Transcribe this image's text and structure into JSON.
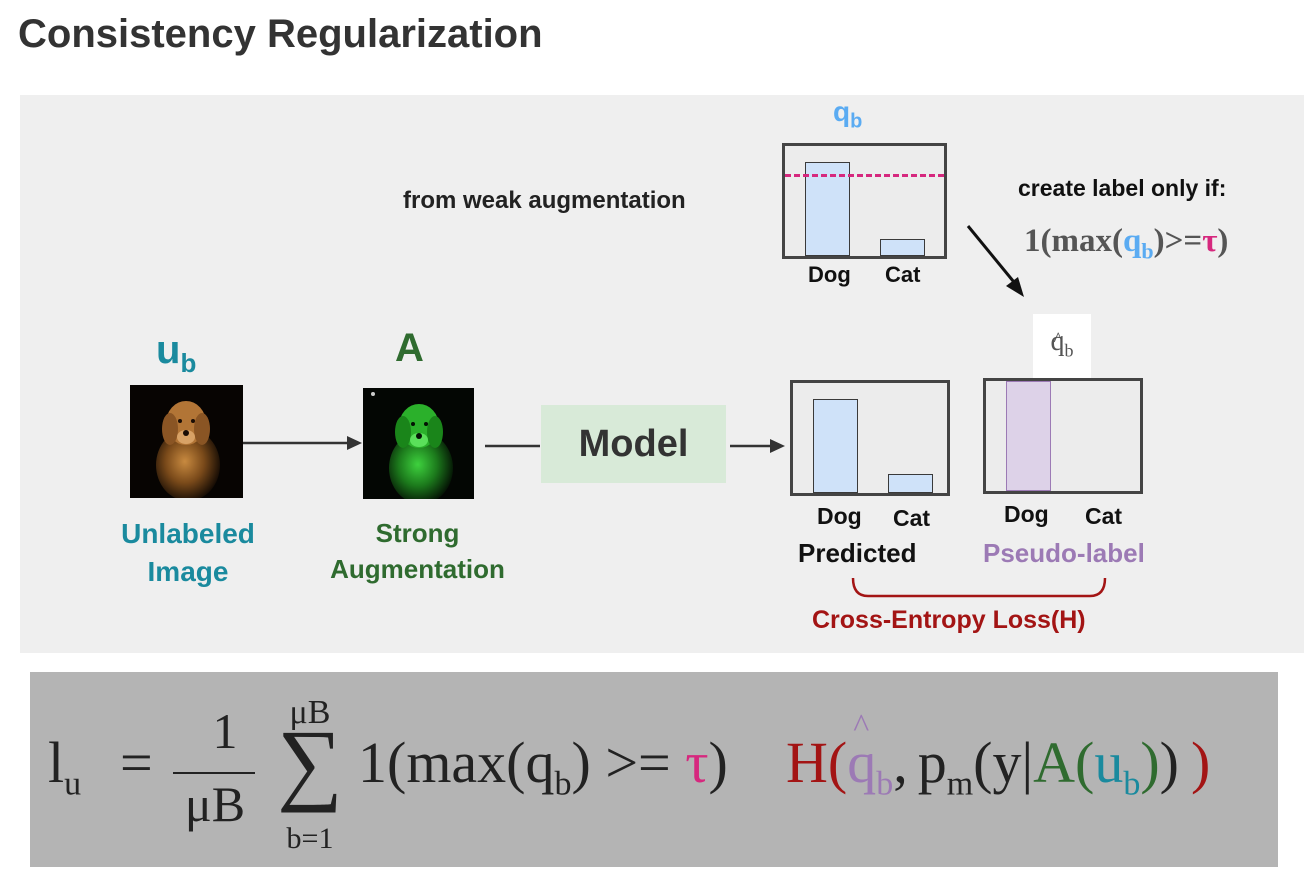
{
  "title": "Consistency Regularization",
  "input": {
    "symbol_base": "u",
    "symbol_sub": "b",
    "caption_line1": "Unlabeled",
    "caption_line2": "Image"
  },
  "augment": {
    "symbol": "A",
    "caption_line1": "Strong",
    "caption_line2": "Augmentation"
  },
  "model": {
    "label": "Model"
  },
  "weak": {
    "symbol_base": "q",
    "symbol_sub": "b",
    "caption": "from weak augmentation",
    "labels": [
      "Dog",
      "Cat"
    ],
    "values": [
      0.85,
      0.15
    ],
    "threshold": 0.72
  },
  "rule": {
    "heading": "create label only if:",
    "p1": "1(max(",
    "q": "q",
    "qsub": "b",
    "p2": ")>=",
    "tau": "τ",
    "p3": ")"
  },
  "qhat": {
    "base": "q",
    "hat": "^",
    "sub": "b"
  },
  "predicted": {
    "labels": [
      "Dog",
      "Cat"
    ],
    "values": [
      0.85,
      0.17
    ],
    "caption": "Predicted"
  },
  "pseudo": {
    "labels": [
      "Dog",
      "Cat"
    ],
    "values": [
      1.0,
      0.0
    ],
    "caption": "Pseudo-label"
  },
  "loss": {
    "caption": "Cross-Entropy Loss(H)"
  },
  "formula": {
    "lhs_base": "l",
    "lhs_sub": "u",
    "equals": "=",
    "frac_num": "1",
    "frac_den": "μB",
    "sum_top": "μB",
    "sum_sym": "∑",
    "sum_bottom": "b=1",
    "ind_open": "1(max(",
    "ind_q": "q",
    "ind_qsub": "b",
    "ind_mid": ") >= ",
    "ind_tau": "τ",
    "ind_close": ")",
    "H": "H",
    "h_open": "(",
    "qhat_base": "q",
    "qhat_sub": "b",
    "comma": ",",
    "p_base": "p",
    "p_sub": "m",
    "y_open": "(",
    "y_text": "y|",
    "A": "A",
    "u_open": "(",
    "u_base": "u",
    "u_sub": "b",
    "u_close": ")",
    "y_close": ")",
    "h_close": ")"
  },
  "colors": {
    "teal": "#1a8a9e",
    "green": "#2f6b2f",
    "blue": "#5aabf2",
    "magenta": "#d6287e",
    "purple": "#9c7ab5",
    "red": "#a31414",
    "model_bg": "#d8ead8",
    "bar_fill": "#cfe2f9",
    "pseudo_fill": "#ddd2e8"
  }
}
